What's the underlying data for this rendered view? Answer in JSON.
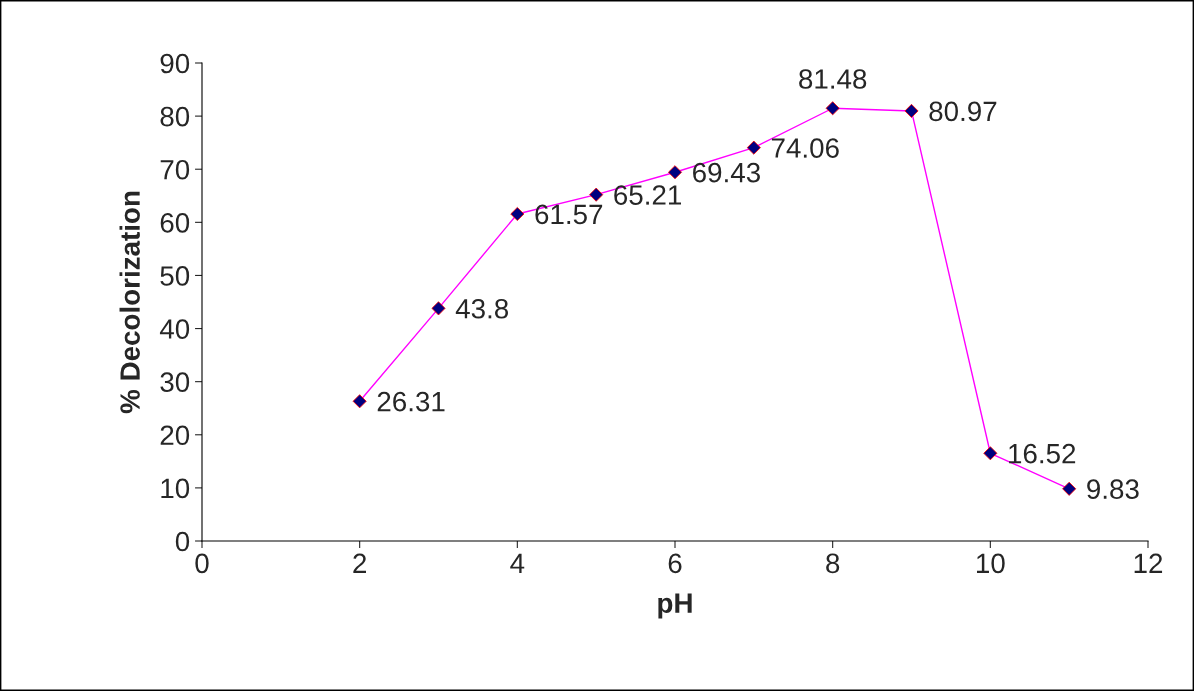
{
  "chart_data": {
    "type": "line",
    "xlabel": "pH",
    "ylabel": "% Decolorization",
    "x": [
      2,
      3,
      4,
      5,
      6,
      7,
      8,
      9,
      10,
      11
    ],
    "series": [
      {
        "color": "#ff00ff",
        "values": [
          26.31,
          43.8,
          61.57,
          65.21,
          69.43,
          74.06,
          81.48,
          80.97,
          16.52,
          9.83
        ]
      }
    ],
    "marker": "diamond",
    "line_style": "solid",
    "data_labels": true,
    "grid": false,
    "legend": false,
    "xlim": [
      0,
      12
    ],
    "xticks": [
      0,
      2,
      4,
      6,
      8,
      10,
      12
    ],
    "ylim": [
      0,
      90
    ],
    "yticks": [
      0,
      10,
      20,
      30,
      40,
      50,
      60,
      70,
      80,
      90
    ]
  }
}
